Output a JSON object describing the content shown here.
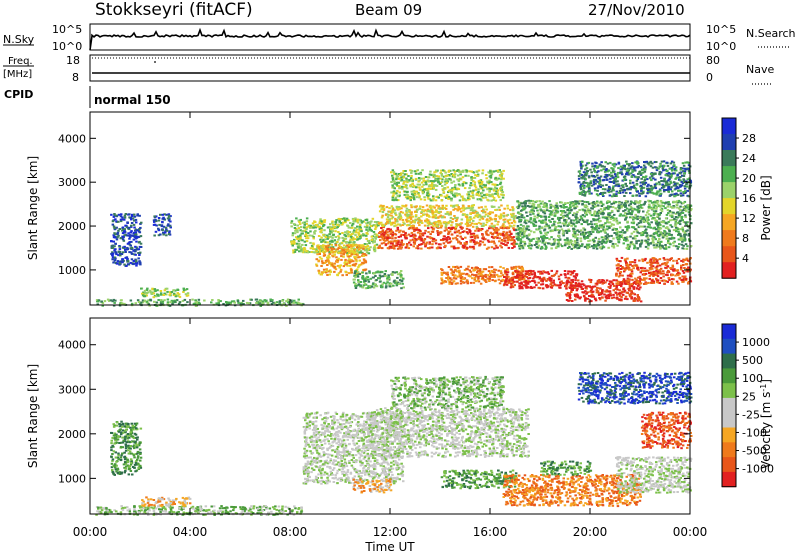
{
  "header": {
    "station": "Stokkseyri (fitACF)",
    "beam": "Beam 09",
    "date": "27/Nov/2010"
  },
  "strips": {
    "nsky_label": "N.Sky",
    "nsky_ticks": [
      "10^5",
      "10^0"
    ],
    "nsearch_label": "N.Search",
    "nsearch_ticks": [
      "10^5",
      "10^0"
    ],
    "freq_label_1": "Freq.",
    "freq_label_2": "[MHz]",
    "freq_ticks": [
      "18",
      "8"
    ],
    "nave_label": "Nave",
    "nave_ticks": [
      "80",
      "0"
    ],
    "cpid_label": "CPID",
    "cpid_value": "normal 150"
  },
  "colors": {
    "power": [
      "#1a2bd6",
      "#1f3fb0",
      "#3a7a5a",
      "#4caf50",
      "#9bd26a",
      "#e3d52a",
      "#f5a623",
      "#ef7a1c",
      "#e8561a",
      "#e22020"
    ],
    "velocity": [
      "#1a2bd6",
      "#1f4fc0",
      "#2e6e4a",
      "#4a9a3a",
      "#7cc04a",
      "#c8c8c8",
      "#c8c8c8",
      "#f5a623",
      "#ef7a1c",
      "#e8561a",
      "#e22020"
    ]
  },
  "chart_data": [
    {
      "type": "heatmap",
      "title": "",
      "xlabel": "Time UT",
      "ylabel": "Slant Range [km]",
      "colorbar_label": "Power [dB]",
      "colorbar_ticks": [
        "28",
        "24",
        "20",
        "16",
        "12",
        "8",
        "4"
      ],
      "colorbar_range": [
        0,
        32
      ],
      "x_ticks": [
        "00:00",
        "04:00",
        "08:00",
        "12:00",
        "16:00",
        "20:00",
        "00:00"
      ],
      "xlim_hours": [
        0,
        24
      ],
      "y_ticks": [
        "4000",
        "3000",
        "2000",
        "1000"
      ],
      "ylim_km": [
        200,
        4600
      ],
      "regions": [
        {
          "t": [
            0.2,
            8.5
          ],
          "r": [
            200,
            350
          ],
          "level": 3
        },
        {
          "t": [
            2.0,
            4.0
          ],
          "r": [
            400,
            600
          ],
          "level": 4
        },
        {
          "t": [
            0.8,
            2.0
          ],
          "r": [
            1100,
            2300
          ],
          "level": 1
        },
        {
          "t": [
            2.5,
            3.2
          ],
          "r": [
            1800,
            2300
          ],
          "level": 1
        },
        {
          "t": [
            8.0,
            11.5
          ],
          "r": [
            1400,
            2200
          ],
          "level": 4
        },
        {
          "t": [
            9.0,
            11.0
          ],
          "r": [
            900,
            1600
          ],
          "level": 6
        },
        {
          "t": [
            10.5,
            12.5
          ],
          "r": [
            600,
            1000
          ],
          "level": 3
        },
        {
          "t": [
            11.5,
            17.0
          ],
          "r": [
            1500,
            2000
          ],
          "level": 8
        },
        {
          "t": [
            11.5,
            17.0
          ],
          "r": [
            2000,
            2500
          ],
          "level": 5
        },
        {
          "t": [
            12.0,
            16.5
          ],
          "r": [
            2600,
            3300
          ],
          "level": 4
        },
        {
          "t": [
            14.0,
            17.5
          ],
          "r": [
            700,
            1100
          ],
          "level": 7
        },
        {
          "t": [
            16.5,
            19.5
          ],
          "r": [
            600,
            1000
          ],
          "level": 9
        },
        {
          "t": [
            19.0,
            22.0
          ],
          "r": [
            300,
            800
          ],
          "level": 9
        },
        {
          "t": [
            21.0,
            24.0
          ],
          "r": [
            700,
            1300
          ],
          "level": 8
        },
        {
          "t": [
            17.0,
            24.0
          ],
          "r": [
            1500,
            2600
          ],
          "level": 3
        },
        {
          "t": [
            19.5,
            24.0
          ],
          "r": [
            2700,
            3500
          ],
          "level": 2
        }
      ]
    },
    {
      "type": "heatmap",
      "title": "",
      "xlabel": "Time UT",
      "ylabel": "Slant Range [km]",
      "colorbar_label": "Velocity [m s^-1]",
      "colorbar_ticks": [
        "1000",
        "500",
        "100",
        "25",
        "-25",
        "-100",
        "-500",
        "-1000"
      ],
      "colorbar_range": [
        -1200,
        1200
      ],
      "x_ticks": [
        "00:00",
        "04:00",
        "08:00",
        "12:00",
        "16:00",
        "20:00",
        "00:00"
      ],
      "xlim_hours": [
        0,
        24
      ],
      "y_ticks": [
        "4000",
        "3000",
        "2000",
        "1000"
      ],
      "ylim_km": [
        200,
        4600
      ],
      "regions": [
        {
          "t": [
            0.2,
            8.5
          ],
          "r": [
            200,
            400
          ],
          "level": 4
        },
        {
          "t": [
            2.0,
            4.0
          ],
          "r": [
            400,
            600
          ],
          "level": 7
        },
        {
          "t": [
            0.8,
            2.0
          ],
          "r": [
            1100,
            2300
          ],
          "level": 3
        },
        {
          "t": [
            8.5,
            12.5
          ],
          "r": [
            900,
            2500
          ],
          "level": 5
        },
        {
          "t": [
            11.0,
            17.5
          ],
          "r": [
            1500,
            2600
          ],
          "level": 5
        },
        {
          "t": [
            12.0,
            16.5
          ],
          "r": [
            2600,
            3300
          ],
          "level": 4
        },
        {
          "t": [
            10.5,
            12.0
          ],
          "r": [
            700,
            1000
          ],
          "level": 7
        },
        {
          "t": [
            14.0,
            17.0
          ],
          "r": [
            800,
            1200
          ],
          "level": 3
        },
        {
          "t": [
            16.5,
            22.0
          ],
          "r": [
            400,
            1100
          ],
          "level": 8
        },
        {
          "t": [
            18.0,
            20.0
          ],
          "r": [
            1100,
            1400
          ],
          "level": 3
        },
        {
          "t": [
            21.0,
            24.0
          ],
          "r": [
            700,
            1500
          ],
          "level": 5
        },
        {
          "t": [
            22.0,
            24.0
          ],
          "r": [
            1700,
            2500
          ],
          "level": 9
        },
        {
          "t": [
            19.5,
            24.0
          ],
          "r": [
            2700,
            3400
          ],
          "level": 1
        }
      ]
    }
  ]
}
